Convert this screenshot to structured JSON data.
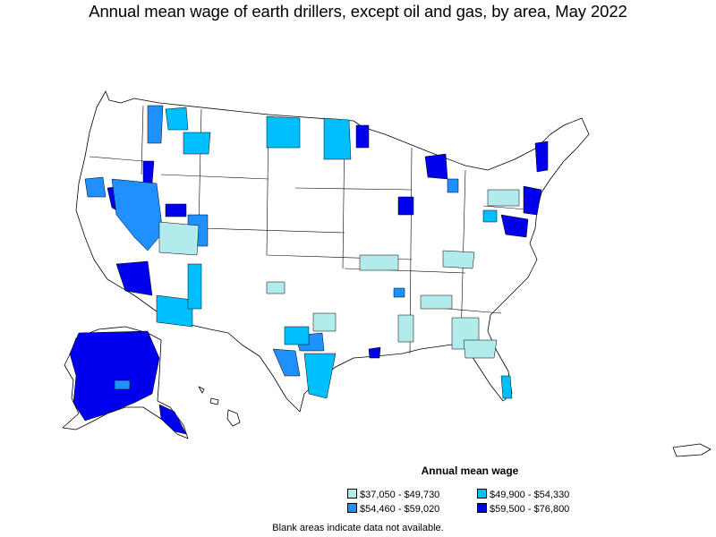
{
  "title": "Annual mean wage of earth drillers, except oil and gas, by area, May 2022",
  "legend": {
    "title": "Annual mean wage",
    "items": [
      {
        "label": "$37,050 - $49,730",
        "color": "#b2ebeb"
      },
      {
        "label": "$54,460 - $59,020",
        "color": "#1e90ff"
      },
      {
        "label": "$49,900 - $54,330",
        "color": "#00bfff"
      },
      {
        "label": "$59,500 - $76,800",
        "color": "#0000ee"
      }
    ]
  },
  "note": "Blank areas indicate data not available.",
  "colors": {
    "background": "#ffffff",
    "border": "#000000",
    "no_data": "#ffffff"
  }
}
